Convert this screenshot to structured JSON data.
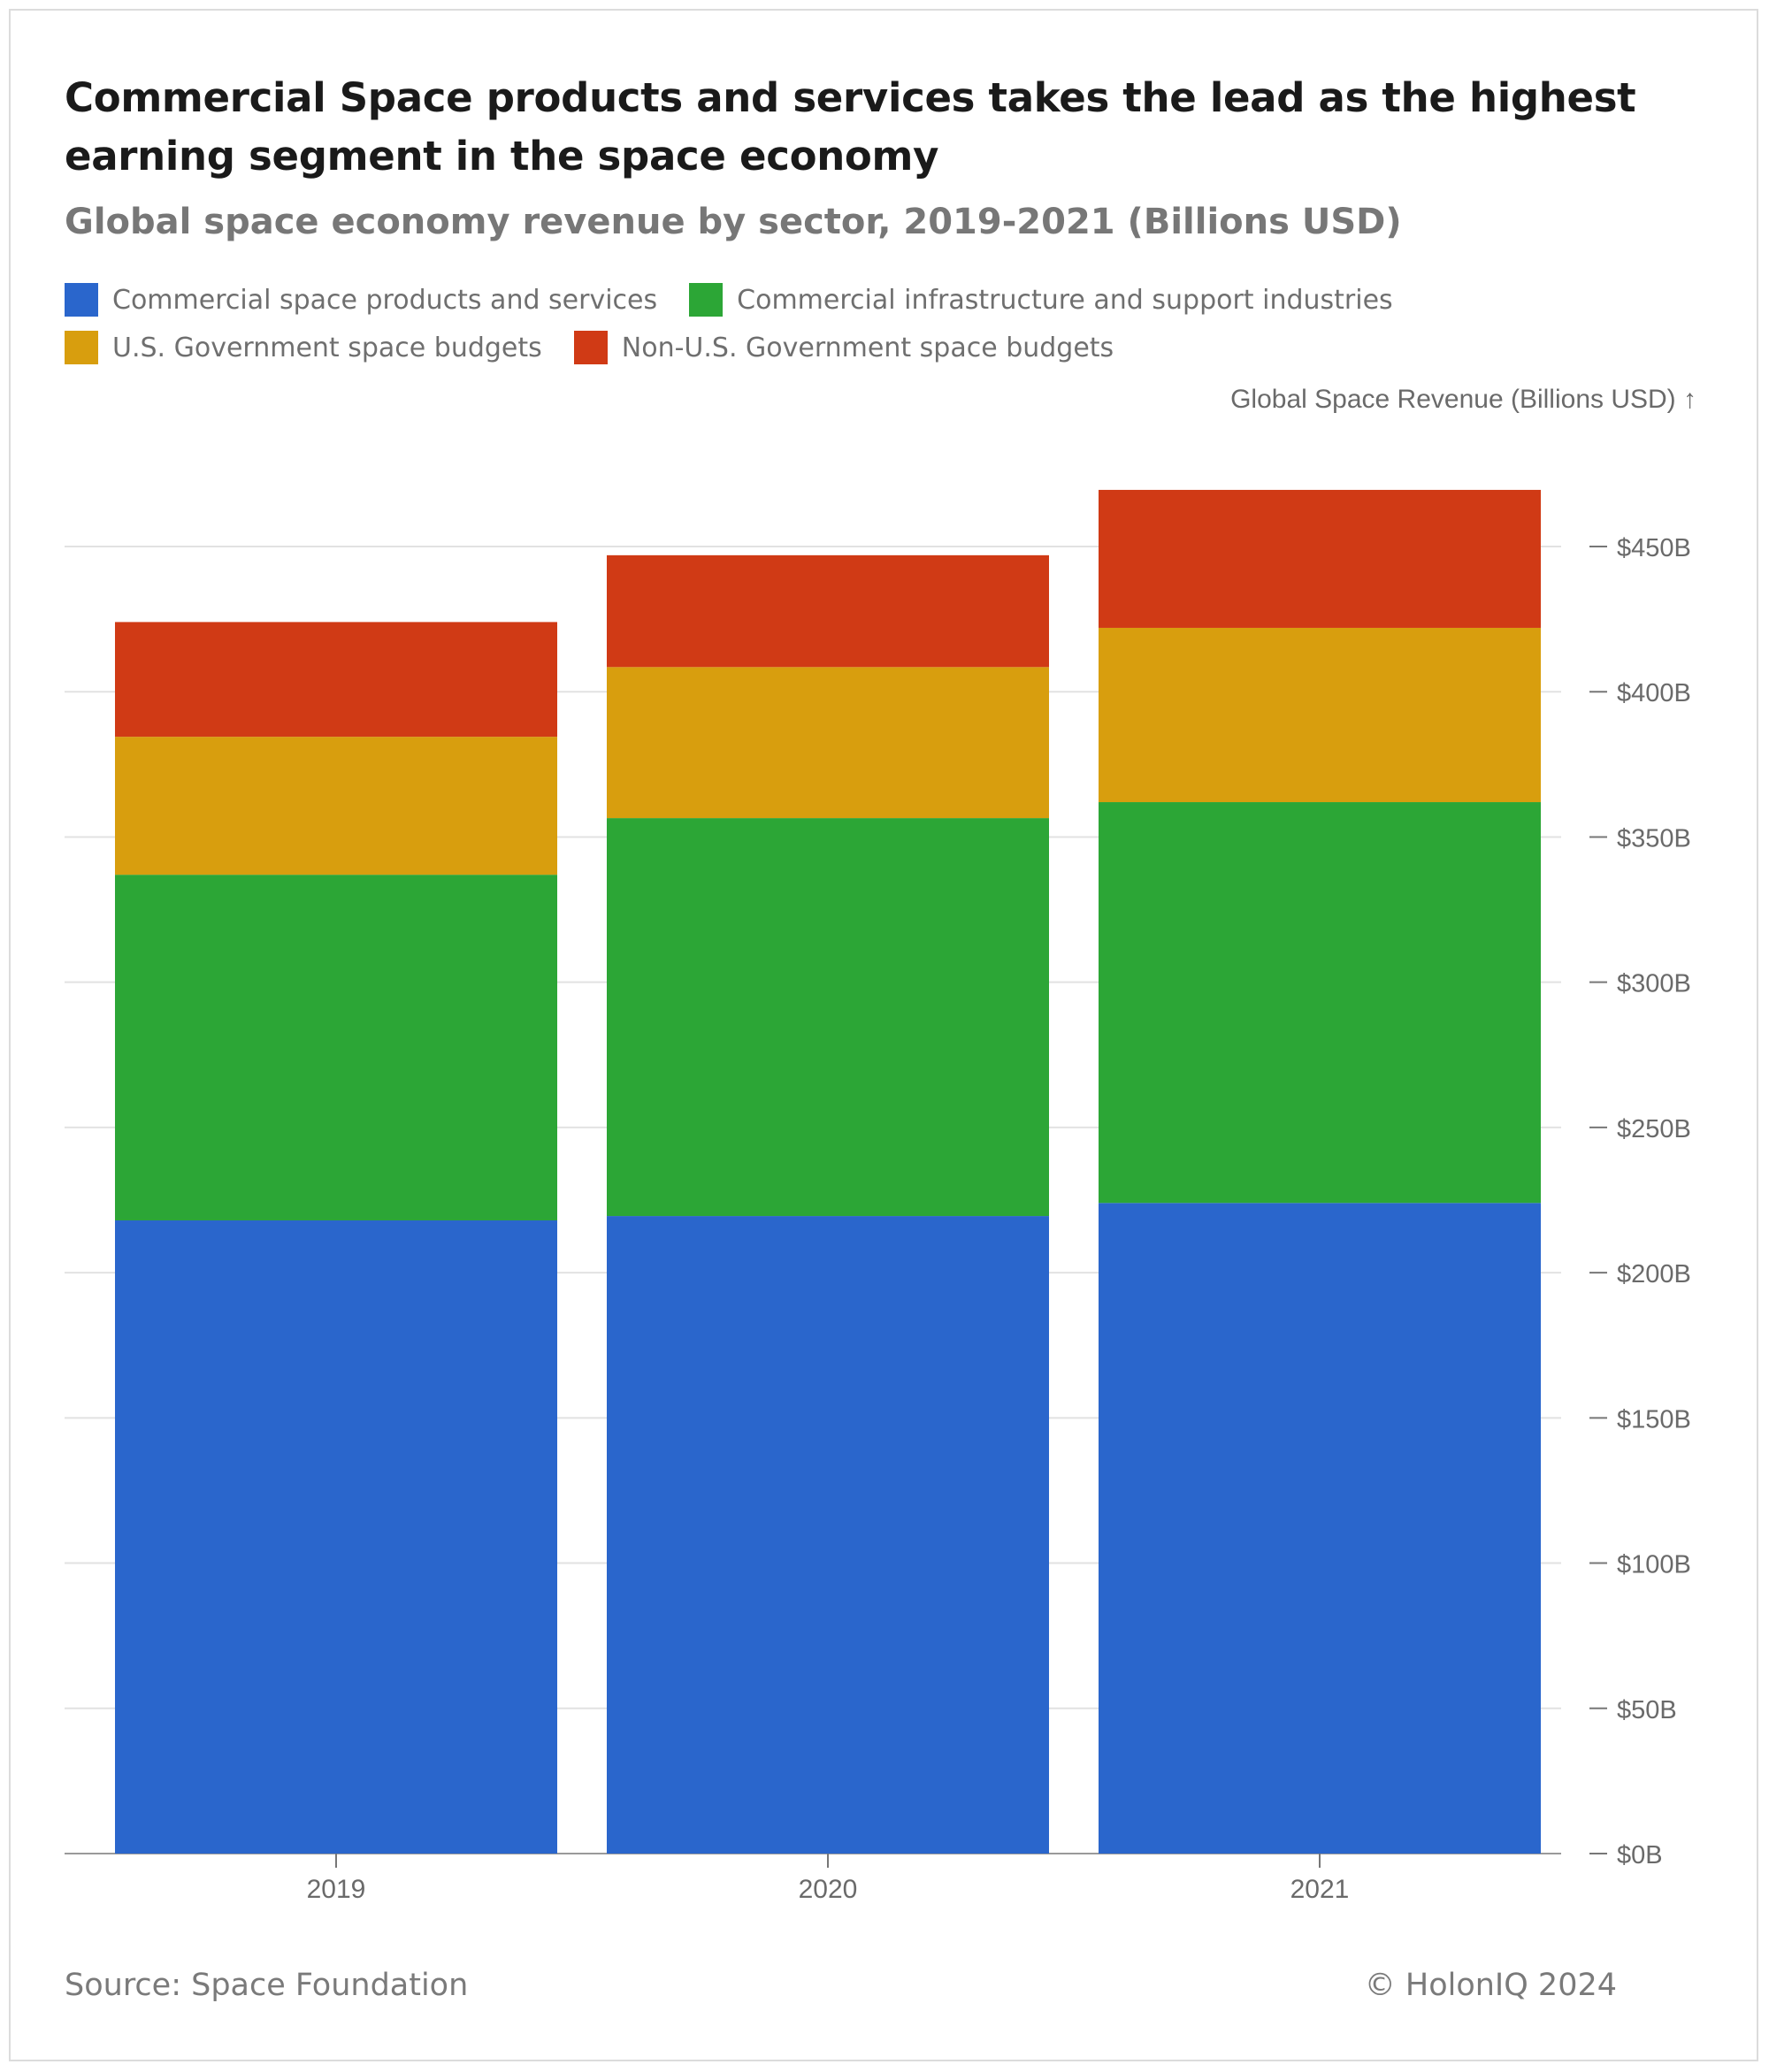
{
  "title": "Commercial Space products and services takes the lead as the highest earning segment in the space economy",
  "subtitle": "Global space economy revenue by sector, 2019-2021 (Billions USD)",
  "legend": [
    {
      "label": "Commercial space products and services",
      "color": "#2a66cc"
    },
    {
      "label": "Commercial infrastructure and support industries",
      "color": "#2ca636"
    },
    {
      "label": "U.S. Government space budgets",
      "color": "#d89e0e"
    },
    {
      "label": "Non-U.S. Government space budgets",
      "color": "#d03a15"
    }
  ],
  "footer": {
    "source": "Source: Space Foundation",
    "copyright": "© HolonIQ 2024"
  },
  "chart_data": {
    "type": "bar",
    "stacked": true,
    "categories": [
      "2019",
      "2020",
      "2021"
    ],
    "series": [
      {
        "name": "Commercial space products and services",
        "color": "#2a66cc",
        "values": [
          218,
          219.5,
          224
        ]
      },
      {
        "name": "Commercial infrastructure and support industries",
        "color": "#2ca636",
        "values": [
          119,
          137,
          138
        ]
      },
      {
        "name": "U.S. Government space budgets",
        "color": "#d89e0e",
        "values": [
          47.5,
          52,
          60
        ]
      },
      {
        "name": "Non-U.S. Government space budgets",
        "color": "#d03a15",
        "values": [
          39.5,
          38.5,
          47.5
        ]
      }
    ],
    "ylabel": "Global Space Revenue (Billions USD) ↑",
    "ylim": [
      0,
      450
    ],
    "yticks": [
      {
        "value": 0,
        "label": "$0B"
      },
      {
        "value": 50,
        "label": "$50B"
      },
      {
        "value": 100,
        "label": "$100B"
      },
      {
        "value": 150,
        "label": "$150B"
      },
      {
        "value": 200,
        "label": "$200B"
      },
      {
        "value": 250,
        "label": "$250B"
      },
      {
        "value": 300,
        "label": "$300B"
      },
      {
        "value": 350,
        "label": "$350B"
      },
      {
        "value": 400,
        "label": "$400B"
      },
      {
        "value": 450,
        "label": "$450B"
      }
    ],
    "y_axis_position": "right",
    "grid": true
  }
}
